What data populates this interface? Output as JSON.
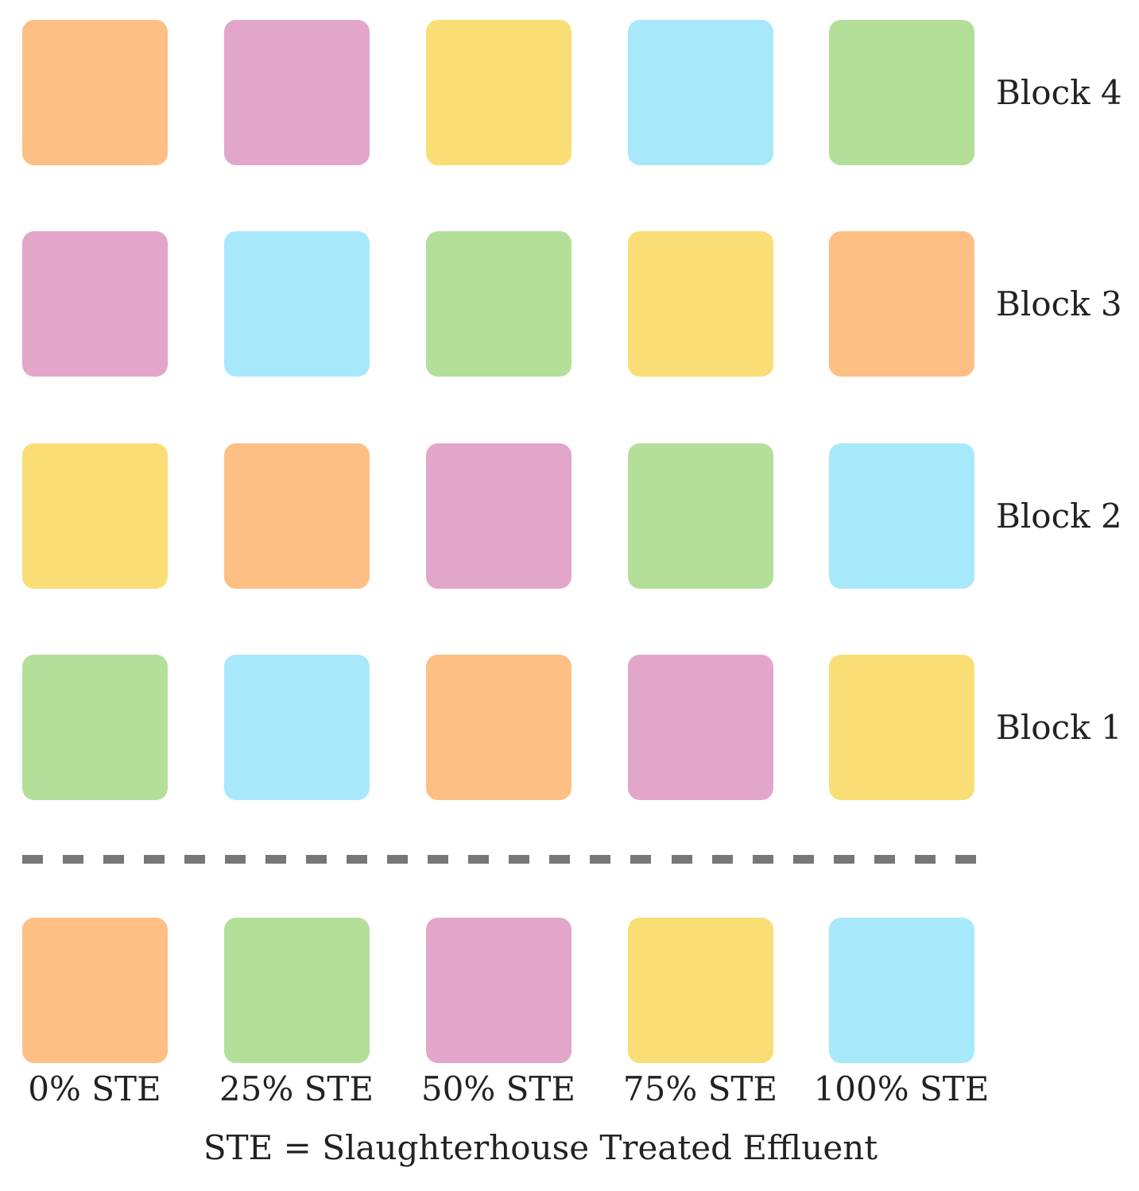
{
  "colors": {
    "orange": "#FDBF83",
    "pink": "#E2A6CB",
    "yellow": "#F9DE75",
    "blue": "#A7E9FA",
    "green": "#B3DF99",
    "divider": "#777777"
  },
  "blocks": [
    {
      "label": "Block 4",
      "cells": [
        "orange",
        "pink",
        "yellow",
        "blue",
        "green"
      ]
    },
    {
      "label": "Block 3",
      "cells": [
        "pink",
        "blue",
        "green",
        "yellow",
        "orange"
      ]
    },
    {
      "label": "Block 2",
      "cells": [
        "yellow",
        "orange",
        "pink",
        "green",
        "blue"
      ]
    },
    {
      "label": "Block 1",
      "cells": [
        "green",
        "blue",
        "orange",
        "pink",
        "yellow"
      ]
    }
  ],
  "legend": [
    {
      "label": "0% STE",
      "color": "orange"
    },
    {
      "label": "25% STE",
      "color": "green"
    },
    {
      "label": "50% STE",
      "color": "pink"
    },
    {
      "label": "75% STE",
      "color": "yellow"
    },
    {
      "label": "100% STE",
      "color": "blue"
    }
  ],
  "footnote": "STE = Slaughterhouse Treated Effluent"
}
